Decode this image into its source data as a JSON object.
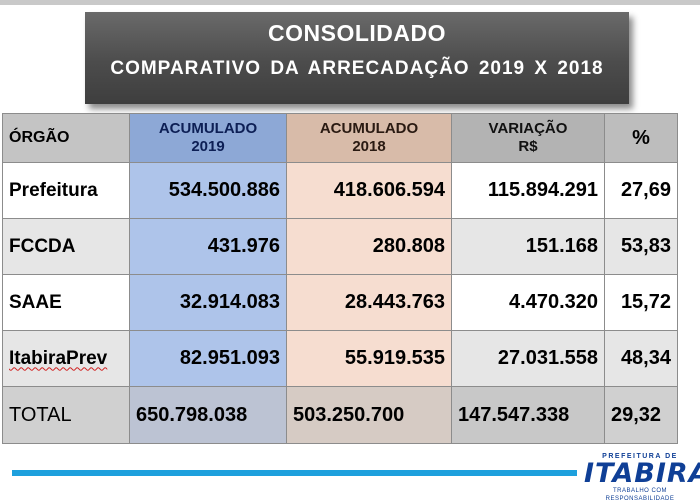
{
  "header": {
    "title": "CONSOLIDADO",
    "subtitle": "COMPARATIVO  DA ARRECADAÇÃO  2019  X  2018"
  },
  "table": {
    "columns": {
      "org": "ÓRGÃO",
      "acc2019_l1": "ACUMULADO",
      "acc2019_l2": "2019",
      "acc2018_l1": "ACUMULADO",
      "acc2018_l2": "2018",
      "var_l1": "VARIAÇÃO",
      "var_l2": "R$",
      "pct": "%"
    },
    "rows": [
      {
        "org": "Prefeitura",
        "acc2019": "534.500.886",
        "acc2018": "418.606.594",
        "var": "115.894.291",
        "pct": "27,69"
      },
      {
        "org": "FCCDA",
        "acc2019": "431.976",
        "acc2018": "280.808",
        "var": "151.168",
        "pct": "53,83"
      },
      {
        "org": "SAAE",
        "acc2019": "32.914.083",
        "acc2018": "28.443.763",
        "var": "4.470.320",
        "pct": "15,72"
      },
      {
        "org": "ItabiraPrev",
        "acc2019": "82.951.093",
        "acc2018": "55.919.535",
        "var": "27.031.558",
        "pct": "48,34"
      }
    ],
    "total": {
      "org": "TOTAL",
      "acc2019": "650.798.038",
      "acc2018": "503.250.700",
      "var": "147.547.338",
      "pct": "29,32"
    }
  },
  "footer": {
    "logo_top": "PREFEITURA DE",
    "logo_main": "ITABIRA",
    "logo_sub": "TRABALHO COM RESPONSABILIDADE"
  },
  "colors": {
    "accent_bar": "#1ea0dd",
    "logo": "#0f3f96",
    "col_2019": "#aec4ea",
    "col_2018": "#f6ddd0"
  }
}
